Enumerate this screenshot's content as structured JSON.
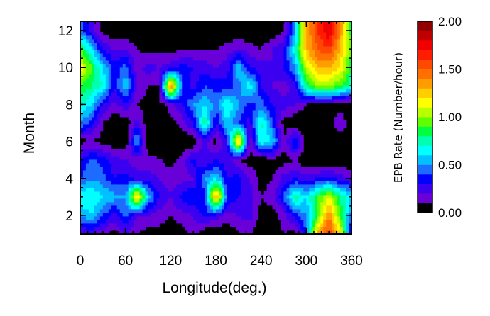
{
  "chart_data": {
    "type": "heatmap",
    "title": "",
    "xlabel": "Longitude(deg.)",
    "ylabel": "Month",
    "xlim": [
      0,
      360
    ],
    "ylim": [
      1,
      12.5
    ],
    "x_ticks": [
      "0",
      "60",
      "120",
      "180",
      "240",
      "300",
      "360"
    ],
    "y_ticks": [
      "2",
      "4",
      "6",
      "8",
      "10",
      "12"
    ],
    "x_ticks_values": [
      0,
      60,
      120,
      180,
      240,
      300,
      360
    ],
    "y_ticks_values": [
      2,
      4,
      6,
      8,
      10,
      12
    ],
    "months": [
      1,
      2,
      3,
      4,
      5,
      6,
      7,
      8,
      9,
      10,
      11,
      12
    ],
    "longitudes": [
      0,
      15,
      30,
      45,
      60,
      75,
      90,
      105,
      120,
      135,
      150,
      165,
      180,
      195,
      210,
      225,
      240,
      255,
      270,
      285,
      300,
      315,
      330,
      345,
      360
    ],
    "z": [
      [
        0.2,
        0.2,
        0.15,
        0.05,
        0.2,
        0.1,
        0.05,
        0.05,
        0.05,
        0.05,
        0.15,
        0.0,
        0.0,
        0.0,
        0.1,
        0.1,
        0.0,
        0.0,
        0.1,
        0.05,
        0.4,
        1.3,
        1.6,
        1.2,
        0.2
      ],
      [
        0.5,
        0.6,
        0.4,
        0.25,
        0.45,
        0.2,
        0.2,
        0.15,
        0.1,
        0.15,
        0.2,
        0.35,
        0.25,
        0.15,
        0.2,
        0.25,
        0.05,
        0.05,
        0.15,
        0.35,
        0.5,
        0.9,
        1.4,
        0.9,
        0.4
      ],
      [
        0.7,
        0.7,
        0.6,
        0.55,
        0.5,
        1.3,
        0.55,
        0.3,
        0.2,
        0.35,
        0.4,
        0.3,
        1.4,
        0.4,
        0.3,
        0.25,
        0.1,
        0.15,
        0.4,
        0.8,
        0.6,
        0.9,
        1.1,
        0.8,
        0.6
      ],
      [
        0.4,
        0.5,
        0.45,
        0.3,
        0.35,
        0.25,
        0.25,
        0.2,
        0.15,
        0.15,
        0.2,
        0.5,
        0.6,
        0.3,
        0.35,
        0.2,
        0.05,
        0.1,
        0.25,
        0.3,
        0.25,
        0.3,
        0.35,
        0.25,
        0.2
      ],
      [
        0.3,
        0.45,
        0.35,
        0.25,
        0.2,
        0.15,
        0.15,
        0.1,
        0.05,
        0.15,
        0.35,
        0.2,
        0.3,
        0.25,
        0.1,
        0.05,
        0.0,
        0.05,
        0.05,
        0.1,
        0.0,
        0.0,
        0.0,
        0.0,
        0.0
      ],
      [
        0.05,
        0.1,
        0.05,
        0.0,
        0.0,
        0.55,
        0.0,
        0.0,
        0.0,
        0.0,
        0.0,
        0.25,
        0.05,
        0.3,
        1.4,
        0.1,
        0.7,
        0.6,
        0.1,
        0.45,
        0.0,
        0.0,
        0.0,
        0.0,
        0.0
      ],
      [
        0.5,
        0.35,
        0.1,
        0.0,
        0.0,
        0.25,
        0.0,
        0.0,
        0.05,
        0.15,
        0.3,
        0.8,
        0.3,
        0.6,
        0.4,
        0.25,
        0.75,
        0.4,
        0.05,
        0.0,
        0.0,
        0.0,
        0.0,
        0.2,
        0.0
      ],
      [
        0.7,
        0.6,
        0.3,
        0.15,
        0.3,
        0.1,
        0.05,
        0.05,
        0.15,
        0.3,
        0.5,
        0.6,
        0.45,
        0.7,
        0.5,
        0.35,
        0.45,
        0.3,
        0.25,
        0.2,
        0.1,
        0.05,
        0.05,
        0.0,
        0.0
      ],
      [
        0.9,
        0.8,
        0.7,
        0.3,
        0.6,
        0.2,
        0.1,
        0.1,
        1.5,
        0.4,
        0.25,
        0.4,
        0.35,
        0.35,
        0.45,
        0.7,
        0.3,
        0.2,
        0.15,
        0.25,
        0.8,
        1.0,
        1.0,
        0.9,
        0.7
      ],
      [
        1.2,
        0.9,
        0.6,
        0.35,
        0.45,
        0.15,
        0.25,
        0.2,
        0.25,
        0.35,
        0.3,
        0.25,
        0.2,
        0.25,
        0.6,
        0.3,
        0.25,
        0.2,
        0.3,
        0.5,
        1.1,
        1.3,
        1.3,
        1.2,
        0.8
      ],
      [
        0.9,
        0.6,
        0.3,
        0.2,
        0.2,
        0.1,
        0.05,
        0.05,
        0.05,
        0.1,
        0.1,
        0.1,
        0.1,
        0.15,
        0.2,
        0.15,
        0.1,
        0.2,
        0.3,
        0.7,
        1.3,
        1.5,
        1.6,
        1.3,
        0.9
      ],
      [
        0.45,
        0.25,
        0.05,
        0.0,
        0.0,
        0.0,
        0.0,
        0.0,
        0.0,
        0.0,
        0.0,
        0.0,
        0.0,
        0.0,
        0.0,
        0.0,
        0.0,
        0.0,
        0.1,
        0.5,
        1.3,
        1.6,
        1.8,
        1.4,
        0.8
      ]
    ],
    "colorbar": {
      "label": "EPB Rate (Number/hour)",
      "ticks": [
        "0.00",
        "0.50",
        "1.00",
        "1.50",
        "2.00"
      ],
      "tick_values": [
        0,
        0.5,
        1.0,
        1.5,
        2.0
      ],
      "range": [
        0,
        2.0
      ],
      "levels": 20,
      "colors": [
        "#000000",
        "#6a00d8",
        "#3c00f0",
        "#0000ff",
        "#1e6cff",
        "#00c0ff",
        "#00ffff",
        "#00ffb0",
        "#00ff40",
        "#60ff00",
        "#b8ff00",
        "#ffff00",
        "#ffd000",
        "#ff9c00",
        "#ff7000",
        "#ff4800",
        "#ff1c00",
        "#f00000",
        "#c00000",
        "#900000"
      ]
    },
    "grid": false
  }
}
